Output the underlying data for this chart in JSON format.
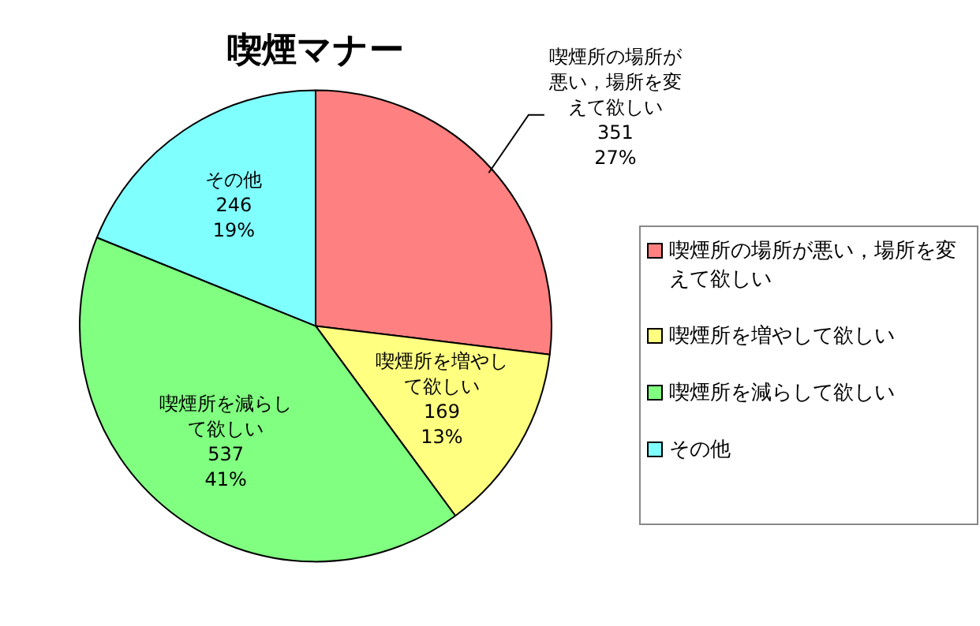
{
  "chart_data": {
    "type": "pie",
    "title": "喫煙マナー",
    "categories": [
      "喫煙所の場所が悪い，場所を変えて欲しい",
      "喫煙所を増やして欲しい",
      "喫煙所を減らして欲しい",
      "その他"
    ],
    "values": [
      351,
      169,
      537,
      246
    ],
    "colors": [
      "#ff8080",
      "#ffff80",
      "#80ff80",
      "#80ffff"
    ],
    "value_labels": [
      "351\n27%",
      "169\n13%",
      "537\n41%",
      "246\n19%"
    ],
    "legend": "right"
  }
}
